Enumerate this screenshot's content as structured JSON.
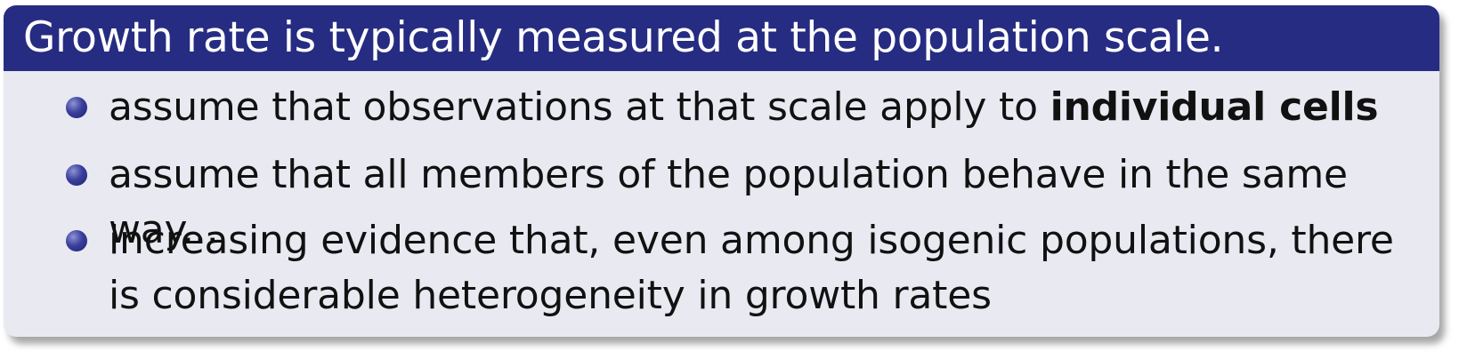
{
  "block": {
    "title": "Growth rate is typically measured at the population scale."
  },
  "items": [
    {
      "text": "assume that observations at that scale apply to ",
      "bold": "individual cells"
    },
    {
      "text": "assume that all members of the population behave in the same way..."
    },
    {
      "text": "increasing evidence that, even among isogenic populations, there is considerable heterogeneity in growth rates"
    }
  ],
  "colors": {
    "title_bar": "#262c82",
    "block_body": "#e9e9f2",
    "bullet": "#3a3f9c"
  }
}
